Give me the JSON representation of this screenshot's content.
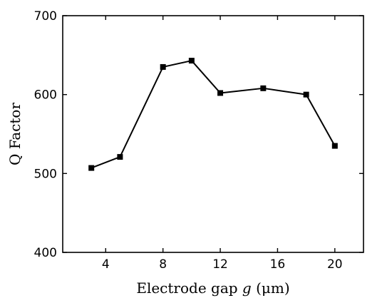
{
  "chart_data": {
    "type": "line",
    "title": "",
    "xlabel": "Electrode gap g (μm)",
    "xlabel_parts": {
      "prefix": "Electrode gap ",
      "variable": "g",
      "suffix": " (μm)"
    },
    "ylabel": "Q Factor",
    "xlim": [
      1,
      22
    ],
    "ylim": [
      400,
      700
    ],
    "xticks": [
      4,
      8,
      12,
      16,
      20
    ],
    "yticks": [
      400,
      500,
      600,
      700
    ],
    "grid": false,
    "legend": "none",
    "series": [
      {
        "marker": "square",
        "color": "#000000",
        "points": [
          {
            "x": 3,
            "y": 507
          },
          {
            "x": 5,
            "y": 521
          },
          {
            "x": 8,
            "y": 635
          },
          {
            "x": 10,
            "y": 643
          },
          {
            "x": 12,
            "y": 602
          },
          {
            "x": 15,
            "y": 608
          },
          {
            "x": 18,
            "y": 600
          },
          {
            "x": 20,
            "y": 535
          }
        ]
      }
    ]
  }
}
